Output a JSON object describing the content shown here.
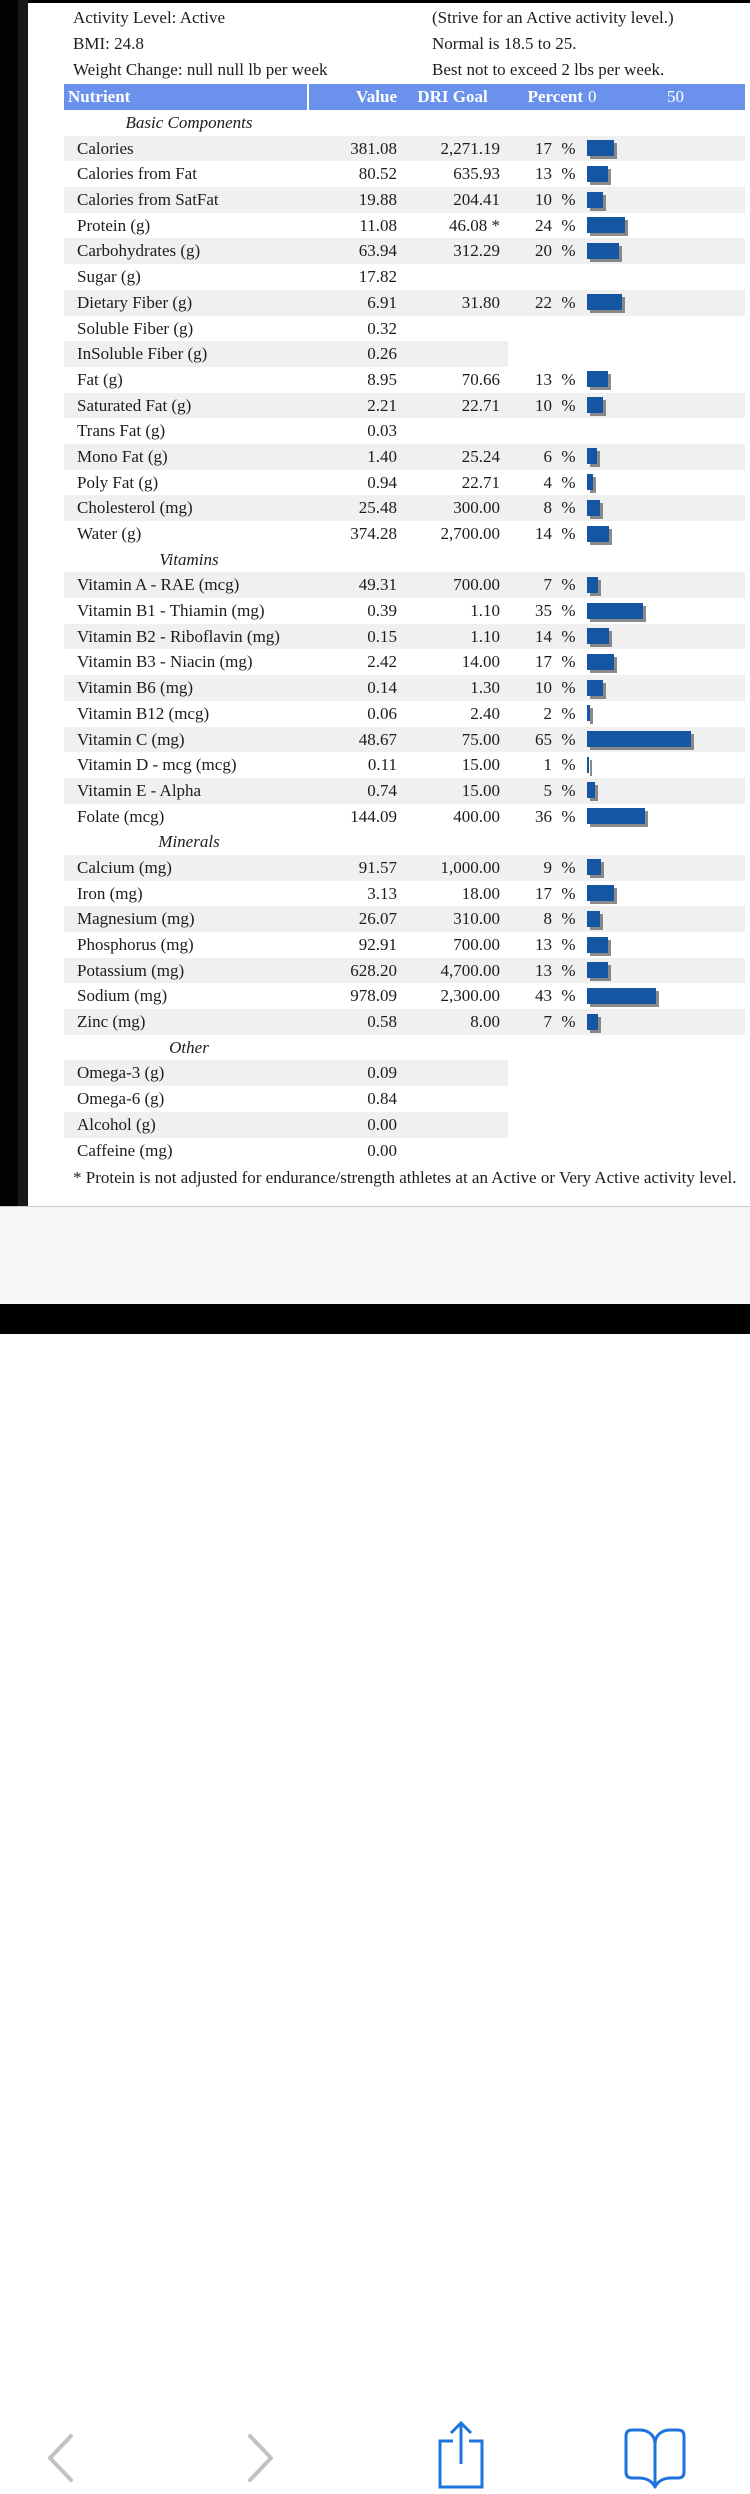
{
  "info": {
    "left": [
      "Activity Level: Active",
      "BMI: 24.8",
      "Weight Change: null null lb per week"
    ],
    "right": [
      "(Strive for an Active activity level.)",
      "Normal is 18.5 to 25.",
      "Best not to exceed 2 lbs per week."
    ]
  },
  "table": {
    "headers": {
      "nutrient": "Nutrient",
      "value": "Value",
      "goal": "DRI Goal",
      "percent": "Percent",
      "scale_start": "0",
      "scale_mid": "50"
    },
    "sections": [
      {
        "label": "Basic Components",
        "rows": [
          {
            "name": "Calories",
            "value": "381.08",
            "goal": "2,271.19",
            "percent": 17
          },
          {
            "name": "Calories from Fat",
            "value": "80.52",
            "goal": "635.93",
            "percent": 13
          },
          {
            "name": "Calories from SatFat",
            "value": "19.88",
            "goal": "204.41",
            "percent": 10
          },
          {
            "name": "Protein (g)",
            "value": "11.08",
            "goal": "46.08 *",
            "percent": 24
          },
          {
            "name": "Carbohydrates (g)",
            "value": "63.94",
            "goal": "312.29",
            "percent": 20
          },
          {
            "name": "Sugar (g)",
            "value": "17.82",
            "goal": null,
            "percent": null
          },
          {
            "name": "Dietary Fiber (g)",
            "value": "6.91",
            "goal": "31.80",
            "percent": 22
          },
          {
            "name": "Soluble Fiber (g)",
            "value": "0.32",
            "goal": null,
            "percent": null
          },
          {
            "name": "InSoluble Fiber (g)",
            "value": "0.26",
            "goal": null,
            "percent": null
          },
          {
            "name": "Fat (g)",
            "value": "8.95",
            "goal": "70.66",
            "percent": 13
          },
          {
            "name": "Saturated Fat (g)",
            "value": "2.21",
            "goal": "22.71",
            "percent": 10
          },
          {
            "name": "Trans Fat (g)",
            "value": "0.03",
            "goal": null,
            "percent": null
          },
          {
            "name": "Mono Fat (g)",
            "value": "1.40",
            "goal": "25.24",
            "percent": 6
          },
          {
            "name": "Poly Fat (g)",
            "value": "0.94",
            "goal": "22.71",
            "percent": 4
          },
          {
            "name": "Cholesterol (mg)",
            "value": "25.48",
            "goal": "300.00",
            "percent": 8
          },
          {
            "name": "Water (g)",
            "value": "374.28",
            "goal": "2,700.00",
            "percent": 14
          }
        ]
      },
      {
        "label": "Vitamins",
        "rows": [
          {
            "name": "Vitamin A - RAE (mcg)",
            "value": "49.31",
            "goal": "700.00",
            "percent": 7
          },
          {
            "name": "Vitamin B1 - Thiamin (mg)",
            "value": "0.39",
            "goal": "1.10",
            "percent": 35
          },
          {
            "name": "Vitamin B2 - Riboflavin (mg)",
            "value": "0.15",
            "goal": "1.10",
            "percent": 14
          },
          {
            "name": "Vitamin B3 - Niacin (mg)",
            "value": "2.42",
            "goal": "14.00",
            "percent": 17
          },
          {
            "name": "Vitamin B6 (mg)",
            "value": "0.14",
            "goal": "1.30",
            "percent": 10
          },
          {
            "name": "Vitamin B12 (mcg)",
            "value": "0.06",
            "goal": "2.40",
            "percent": 2
          },
          {
            "name": "Vitamin C (mg)",
            "value": "48.67",
            "goal": "75.00",
            "percent": 65
          },
          {
            "name": "Vitamin D - mcg (mcg)",
            "value": "0.11",
            "goal": "15.00",
            "percent": 1
          },
          {
            "name": "Vitamin E - Alpha",
            "value": "0.74",
            "goal": "15.00",
            "percent": 5
          },
          {
            "name": "Folate (mcg)",
            "value": "144.09",
            "goal": "400.00",
            "percent": 36
          }
        ]
      },
      {
        "label": "Minerals",
        "rows": [
          {
            "name": "Calcium (mg)",
            "value": "91.57",
            "goal": "1,000.00",
            "percent": 9
          },
          {
            "name": "Iron (mg)",
            "value": "3.13",
            "goal": "18.00",
            "percent": 17
          },
          {
            "name": "Magnesium (mg)",
            "value": "26.07",
            "goal": "310.00",
            "percent": 8
          },
          {
            "name": "Phosphorus (mg)",
            "value": "92.91",
            "goal": "700.00",
            "percent": 13
          },
          {
            "name": "Potassium (mg)",
            "value": "628.20",
            "goal": "4,700.00",
            "percent": 13
          },
          {
            "name": "Sodium (mg)",
            "value": "978.09",
            "goal": "2,300.00",
            "percent": 43
          },
          {
            "name": "Zinc (mg)",
            "value": "0.58",
            "goal": "8.00",
            "percent": 7
          }
        ]
      },
      {
        "label": "Other",
        "rows": [
          {
            "name": "Omega-3 (g)",
            "value": "0.09",
            "goal": null,
            "percent": null
          },
          {
            "name": "Omega-6 (g)",
            "value": "0.84",
            "goal": null,
            "percent": null
          },
          {
            "name": "Alcohol (g)",
            "value": "0.00",
            "goal": null,
            "percent": null
          },
          {
            "name": "Caffeine (mg)",
            "value": "0.00",
            "goal": null,
            "percent": null
          }
        ]
      }
    ]
  },
  "footnote": "* Protein is not adjusted for endurance/strength athletes at an Active or Very Active activity level.",
  "navbar": {
    "icons": [
      "back-chevron-icon",
      "forward-chevron-icon",
      "share-icon",
      "bookmarks-icon"
    ]
  },
  "colors": {
    "header_bg": "#6a92ec",
    "bar_blue": "#1456a2",
    "stripe_gray": "#f0f0f0",
    "nav_icon_blue": "#1d74e0",
    "nav_chevron_gray": "#c2c2c4"
  }
}
